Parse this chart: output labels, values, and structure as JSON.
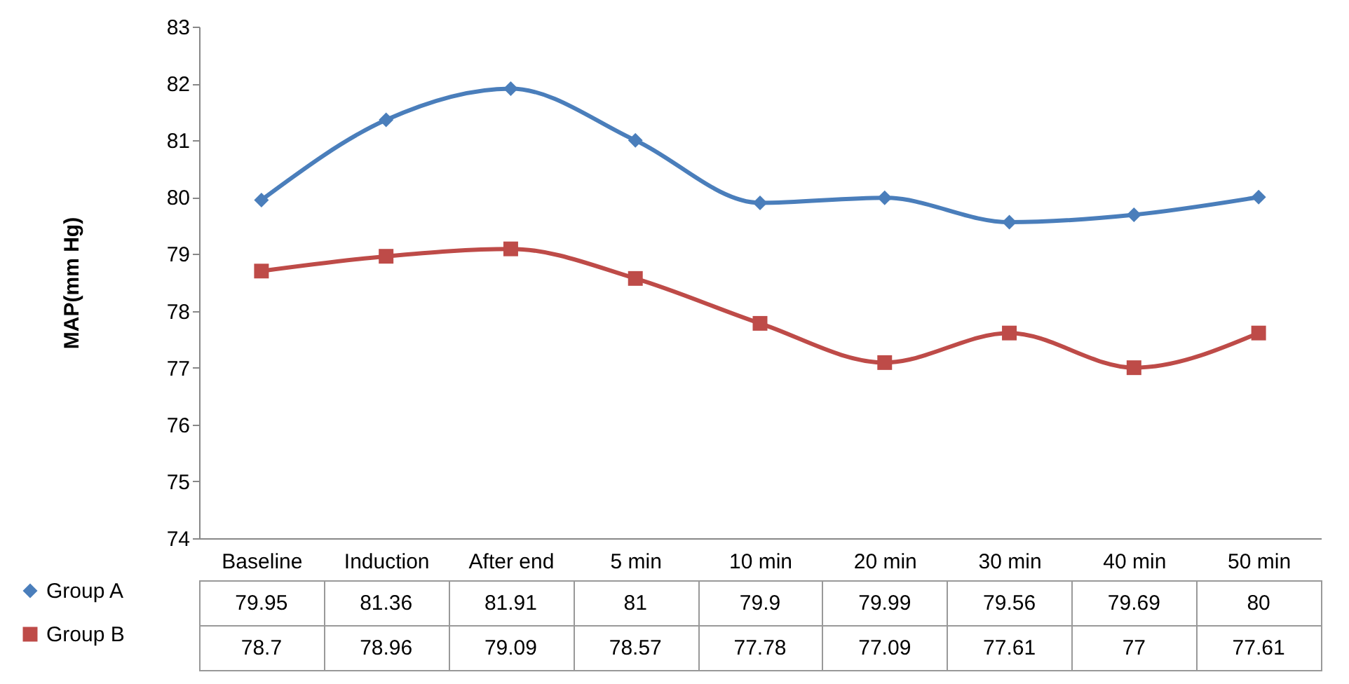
{
  "chart_data": {
    "type": "line",
    "ylabel": "MAP(mm Hg)",
    "categories": [
      "Baseline",
      "Induction",
      "After end",
      "5 min",
      "10 min",
      "20 min",
      "30 min",
      "40 min",
      "50 min"
    ],
    "series": [
      {
        "name": "Group A",
        "color": "#4a7ebb",
        "marker": "diamond",
        "values": [
          79.95,
          81.36,
          81.91,
          81,
          79.9,
          79.99,
          79.56,
          79.69,
          80
        ]
      },
      {
        "name": "Group B",
        "color": "#be4b48",
        "marker": "square",
        "values": [
          78.7,
          78.96,
          79.09,
          78.57,
          77.78,
          77.09,
          77.61,
          77,
          77.61
        ]
      }
    ],
    "ylim": [
      74,
      83
    ],
    "yticks": [
      74,
      75,
      76,
      77,
      78,
      79,
      80,
      81,
      82,
      83
    ],
    "grid": false,
    "legend": "bottom left",
    "data_labels": true
  }
}
